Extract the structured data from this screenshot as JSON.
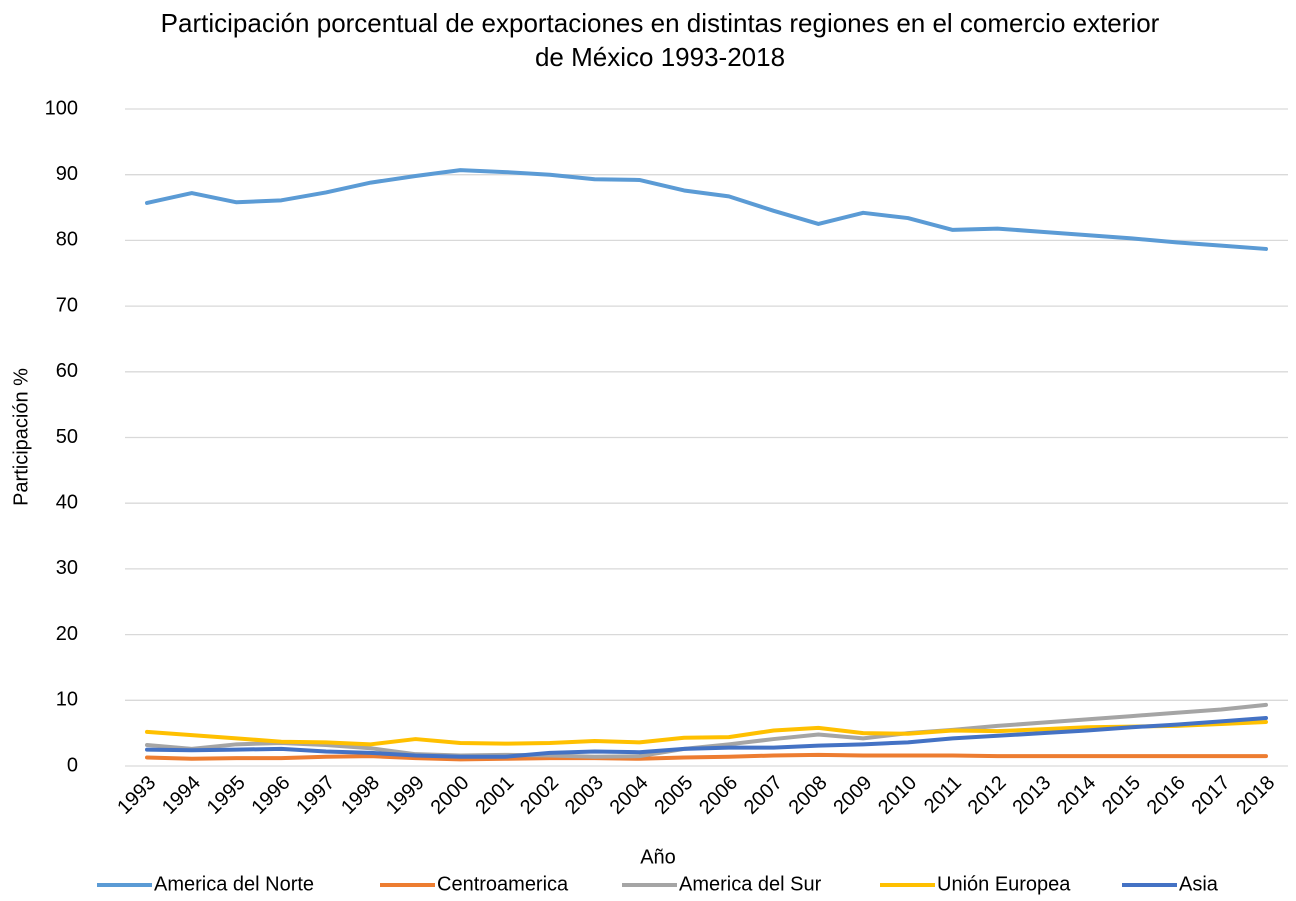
{
  "chart_data": {
    "type": "line",
    "title": "Participación porcentual de exportaciones en distintas regiones en el comercio exterior de México 1993-2018",
    "x_label": "Año",
    "y_label": "Participación %",
    "categories": [
      "1993",
      "1994",
      "1995",
      "1996",
      "1997",
      "1998",
      "1999",
      "2000",
      "2001",
      "2002",
      "2003",
      "2004",
      "2005",
      "2006",
      "2007",
      "2008",
      "2009",
      "2010",
      "2011",
      "2012",
      "2013",
      "2014",
      "2015",
      "2016",
      "2017",
      "2018"
    ],
    "series": [
      {
        "name": "America del Norte",
        "color": "#5b9bd5",
        "values": [
          85.7,
          87.2,
          85.8,
          86.1,
          87.3,
          88.8,
          89.8,
          90.7,
          90.4,
          90.0,
          89.3,
          89.2,
          87.6,
          86.7,
          84.5,
          82.5,
          84.2,
          83.4,
          81.6,
          81.8,
          81.3,
          80.8,
          80.3,
          79.7,
          79.2,
          78.7
        ]
      },
      {
        "name": "Centroamerica",
        "color": "#ed7d31",
        "values": [
          1.3,
          1.1,
          1.2,
          1.2,
          1.4,
          1.5,
          1.2,
          1.0,
          1.1,
          1.2,
          1.2,
          1.1,
          1.3,
          1.4,
          1.6,
          1.7,
          1.6,
          1.6,
          1.6,
          1.5,
          1.5,
          1.5,
          1.5,
          1.5,
          1.5,
          1.5
        ]
      },
      {
        "name": "America del Sur",
        "color": "#a5a5a5",
        "values": [
          3.2,
          2.6,
          3.3,
          3.5,
          3.2,
          2.7,
          1.8,
          1.6,
          1.7,
          1.6,
          1.4,
          1.5,
          2.6,
          3.3,
          4.1,
          4.8,
          4.2,
          5.0,
          5.5,
          6.1,
          6.6,
          7.1,
          7.6,
          8.1,
          8.6,
          9.3
        ]
      },
      {
        "name": "Unión Europea",
        "color": "#ffc000",
        "values": [
          5.2,
          4.7,
          4.2,
          3.7,
          3.6,
          3.3,
          4.1,
          3.5,
          3.4,
          3.5,
          3.8,
          3.6,
          4.3,
          4.4,
          5.4,
          5.8,
          5.0,
          4.9,
          5.4,
          5.3,
          5.6,
          5.9,
          6.0,
          6.1,
          6.4,
          6.7
        ]
      },
      {
        "name": "Asia",
        "color": "#4472c4",
        "values": [
          2.5,
          2.4,
          2.5,
          2.6,
          2.2,
          2.0,
          1.6,
          1.4,
          1.4,
          2.0,
          2.2,
          2.1,
          2.6,
          2.8,
          2.8,
          3.1,
          3.3,
          3.6,
          4.2,
          4.6,
          5.0,
          5.4,
          5.9,
          6.3,
          6.8,
          7.3
        ]
      }
    ],
    "ylim": [
      0,
      100
    ],
    "yticks": [
      0,
      10,
      20,
      30,
      40,
      50,
      60,
      70,
      80,
      90,
      100
    ],
    "grid": true,
    "legend": "bottom"
  }
}
